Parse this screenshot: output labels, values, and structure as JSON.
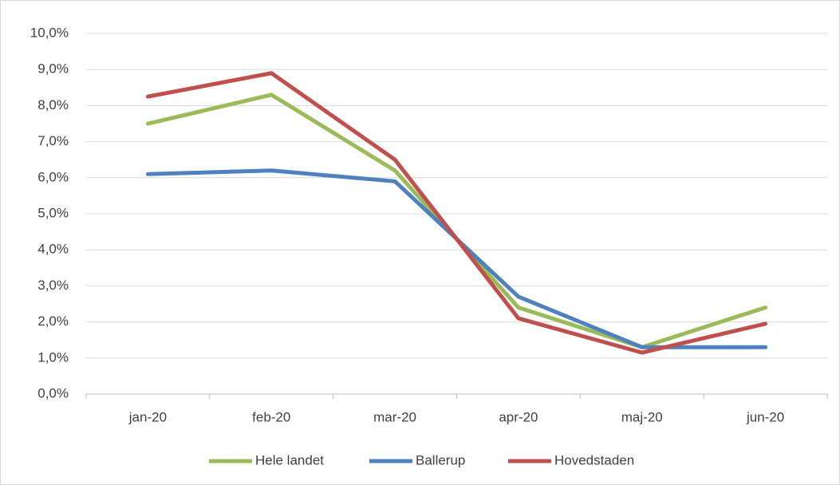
{
  "chart_data": {
    "type": "line",
    "categories": [
      "jan-20",
      "feb-20",
      "mar-20",
      "apr-20",
      "maj-20",
      "jun-20"
    ],
    "series": [
      {
        "name": "Hele landet",
        "color": "#9bbb59",
        "values": [
          7.5,
          8.3,
          6.2,
          2.4,
          1.3,
          2.4
        ]
      },
      {
        "name": "Ballerup",
        "color": "#4f81bd",
        "values": [
          6.1,
          6.2,
          5.9,
          2.7,
          1.3,
          1.3
        ]
      },
      {
        "name": "Hovedstaden",
        "color": "#c0504d",
        "values": [
          8.25,
          8.9,
          6.5,
          2.1,
          1.15,
          1.95
        ]
      }
    ],
    "ylim": [
      0,
      10
    ],
    "yticks": [
      {
        "value": 0,
        "label": "0,0%"
      },
      {
        "value": 1,
        "label": "1,0%"
      },
      {
        "value": 2,
        "label": "2,0%"
      },
      {
        "value": 3,
        "label": "3,0%"
      },
      {
        "value": 4,
        "label": "4,0%"
      },
      {
        "value": 5,
        "label": "5,0%"
      },
      {
        "value": 6,
        "label": "6,0%"
      },
      {
        "value": 7,
        "label": "7,0%"
      },
      {
        "value": 8,
        "label": "8,0%"
      },
      {
        "value": 9,
        "label": "9,0%"
      },
      {
        "value": 10,
        "label": "10,0%"
      }
    ],
    "grid": true,
    "legend": "bottom"
  }
}
